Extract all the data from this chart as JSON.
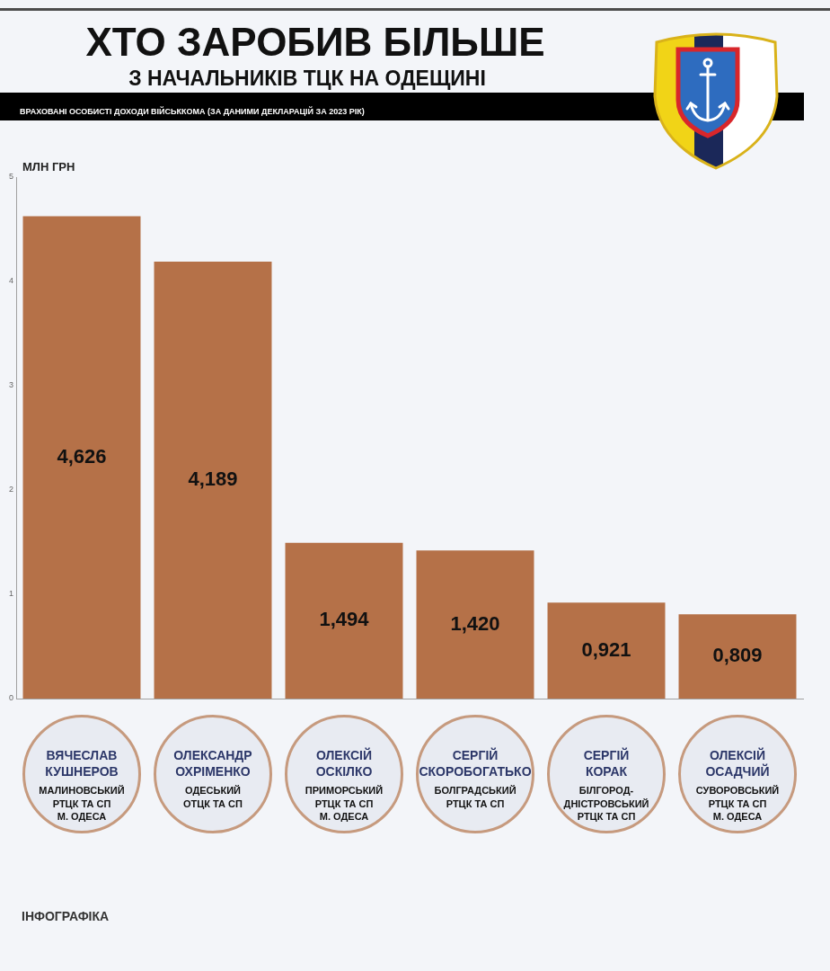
{
  "chart_data": {
    "type": "bar",
    "title": "ХТО ЗАРОБИВ БІЛЬШЕ",
    "subtitle": "З НАЧАЛЬНИКІВ ТЦК НА ОДЕЩИНІ",
    "ylabel": "МЛН ГРН",
    "annotations": [
      "ВРАХОВАНІ ОСОБИСТІ ДОХОДИ ВІЙСЬККОМА (ЗА ДАНИМИ ДЕКЛАРАЦІЙ ЗА 2023 РІК)",
      "ІНФОГРАФІКА"
    ],
    "categories": [
      "ВЯЧЕСЛАВ\nКУШНЕРОВ\nМАЛИНОВСЬКИЙ\nРТЦК ТА СП\nМ. ОДЕСА",
      "ОЛЕКСАНДР\nОХРІМЕНКО\nОДЕСЬКИЙ\nОТЦК ТА СП",
      "ОЛЕКСІЙ\nОСКІЛКО\nПРИМОРСЬКИЙ\nРТЦК ТА СП\nМ. ОДЕСА",
      "СЕРГІЙ\nСКОРОБОГАТЬКО\nБОЛГРАДСЬКИЙ\nРТЦК ТА СП",
      "СЕРГІЙ\nКОРАК\nБІЛГОРОД-\nДНІСТРОВСЬКИЙ\nРТЦК ТА СП",
      "ОЛЕКСІЙ\nОСАДЧИЙ\nСУВОРОВСЬКИЙ\nРТЦК ТА СП\nМ. ОДЕСА"
    ],
    "values": [
      4.626,
      4.189,
      1.494,
      1.42,
      0.921,
      0.809
    ],
    "value_labels": [
      "4,626",
      "4,189",
      "1,494",
      "1,420",
      "0,921",
      "0,809"
    ],
    "color": "#b57148",
    "ylim": [
      0,
      5
    ],
    "yticks": [
      0,
      1,
      2,
      3,
      4,
      5
    ],
    "grid": false,
    "legend": false
  }
}
